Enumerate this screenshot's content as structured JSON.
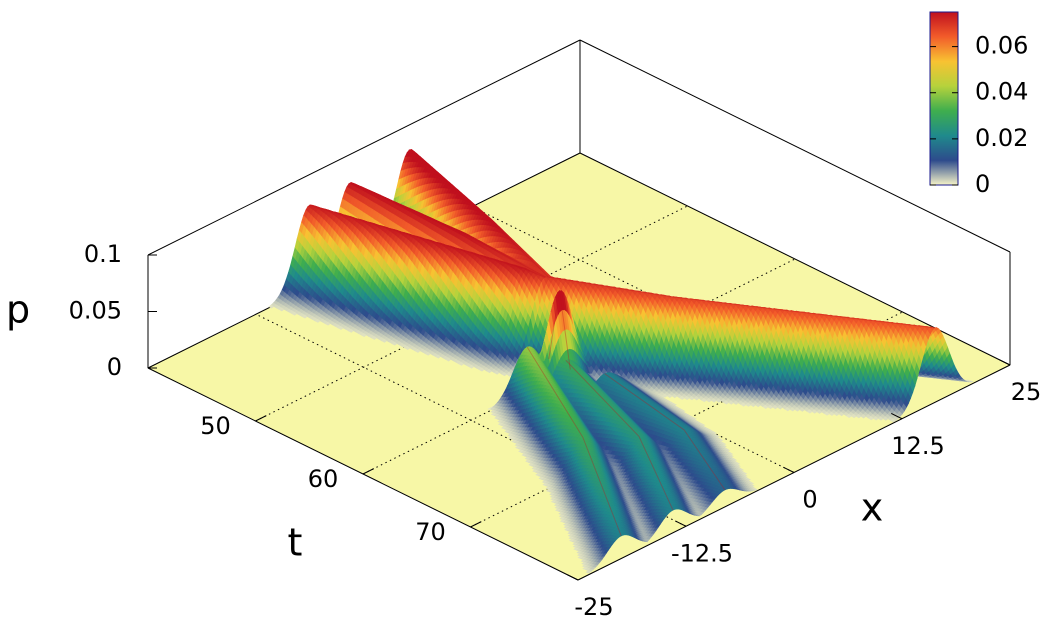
{
  "chart_data": {
    "type": "surface",
    "zlabel": "p",
    "tlabel": "t",
    "xlabel": "x",
    "tlim": [
      40,
      80
    ],
    "tticks": [
      50,
      60,
      70
    ],
    "xlim": [
      -25,
      25
    ],
    "xticks": [
      -25,
      -12.5,
      0,
      12.5,
      25
    ],
    "zlim": [
      0,
      0.1
    ],
    "zticks": [
      0,
      0.05,
      0.1
    ],
    "cblim": [
      0,
      0.075
    ],
    "cbticks": [
      0,
      0.02,
      0.04,
      0.06
    ],
    "palette": [
      "#f6f4c8",
      "#2d4b8c",
      "#1f8a8c",
      "#3fae4e",
      "#b6d23c",
      "#f8c232",
      "#f25c2a",
      "#c0101e"
    ],
    "floor_color": "#f7f7a6",
    "grid": true,
    "series": [
      {
        "t": [
          40,
          48,
          56,
          57.5
        ],
        "x": [
          -6.3,
          -4,
          -1.5,
          -0.8
        ],
        "values": [
          0.073,
          0.074,
          0.074,
          0.07
        ]
      },
      {
        "t": [
          40,
          50,
          57.5
        ],
        "x": [
          -1.6,
          -1,
          -0.7
        ],
        "values": [
          0.075,
          0.075,
          0.07
        ]
      },
      {
        "t": [
          40,
          50,
          57.5
        ],
        "x": [
          5.3,
          2,
          -0.5
        ],
        "values": [
          0.078,
          0.076,
          0.07
        ]
      },
      {
        "t": [
          57.5,
          65,
          72,
          80
        ],
        "x": [
          -0.6,
          4.5,
          10,
          16.3
        ],
        "values": [
          0.07,
          0.068,
          0.067,
          0.066
        ]
      },
      {
        "t": [
          60,
          61,
          62
        ],
        "x": [
          -3.5,
          -3.5,
          -3.5
        ],
        "values": [
          0.02,
          0.085,
          0.02
        ]
      },
      {
        "t": [
          60,
          70,
          80
        ],
        "x": [
          -6,
          -12,
          -20
        ],
        "values": [
          0.04,
          0.03,
          0.02
        ]
      },
      {
        "t": [
          62,
          72,
          80
        ],
        "x": [
          -4,
          -8,
          -14
        ],
        "values": [
          0.03,
          0.025,
          0.02
        ]
      },
      {
        "t": [
          64,
          73,
          80
        ],
        "x": [
          -2,
          -4,
          -8
        ],
        "values": [
          0.02,
          0.02,
          0.015
        ]
      }
    ]
  }
}
